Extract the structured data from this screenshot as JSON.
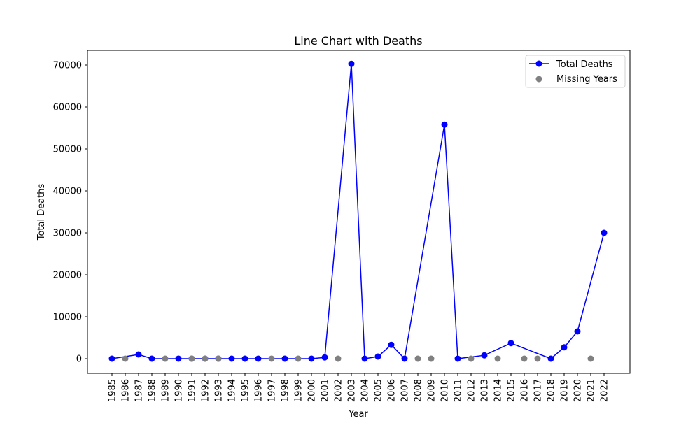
{
  "chart_data": {
    "type": "line",
    "title": "Line Chart with Deaths",
    "xlabel": "Year",
    "ylabel": "Total Deaths",
    "ylim": [
      -3500,
      73500
    ],
    "yticks": [
      0,
      10000,
      20000,
      30000,
      40000,
      50000,
      60000,
      70000
    ],
    "x_categories": [
      "1985",
      "1986",
      "1987",
      "1988",
      "1989",
      "1990",
      "1991",
      "1992",
      "1993",
      "1994",
      "1995",
      "1996",
      "1997",
      "1998",
      "1999",
      "2000",
      "2001",
      "2002",
      "2003",
      "2004",
      "2005",
      "2006",
      "2007",
      "2008",
      "2009",
      "2010",
      "2011",
      "2012",
      "2013",
      "2014",
      "2015",
      "2016",
      "2017",
      "2018",
      "2019",
      "2020",
      "2021",
      "2022"
    ],
    "grid": false,
    "legend_position": "top-right",
    "series": [
      {
        "name": "Total Deaths",
        "kind": "line-with-markers",
        "color": "#0000ff",
        "x": [
          "1985",
          "1987",
          "1988",
          "1990",
          "1991",
          "1992",
          "1993",
          "1994",
          "1995",
          "1996",
          "1998",
          "2000",
          "2001",
          "2003",
          "2004",
          "2005",
          "2006",
          "2007",
          "2010",
          "2011",
          "2013",
          "2015",
          "2018",
          "2019",
          "2020",
          "2022"
        ],
        "values": [
          0,
          1000,
          0,
          0,
          0,
          0,
          0,
          0,
          0,
          0,
          0,
          0,
          300,
          70300,
          0,
          500,
          3300,
          0,
          55800,
          0,
          800,
          3700,
          0,
          2700,
          6500,
          30000
        ]
      },
      {
        "name": "Missing Years",
        "kind": "scatter",
        "color": "#808080",
        "x": [
          "1986",
          "1989",
          "1991",
          "1992",
          "1993",
          "1997",
          "1999",
          "2002",
          "2008",
          "2009",
          "2012",
          "2014",
          "2016",
          "2017",
          "2021"
        ],
        "values": [
          0,
          0,
          0,
          0,
          0,
          0,
          0,
          0,
          0,
          0,
          0,
          0,
          0,
          0,
          0
        ]
      }
    ]
  }
}
